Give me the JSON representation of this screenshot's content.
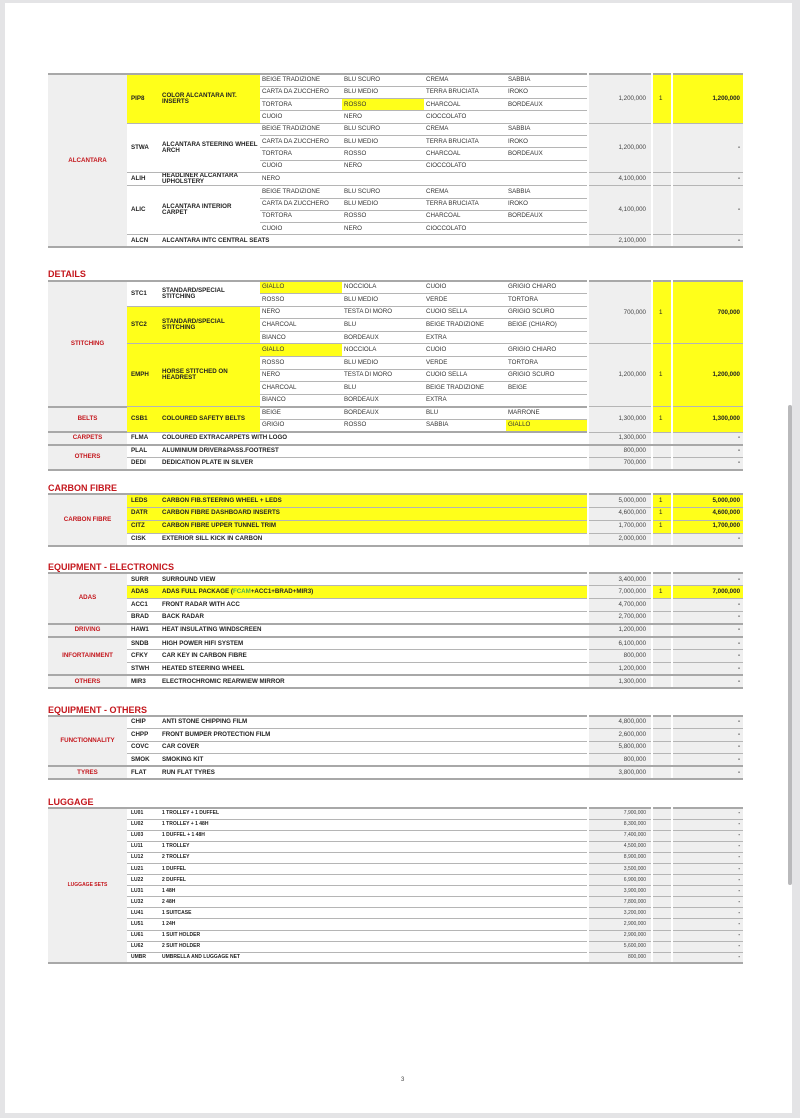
{
  "colors": {
    "accent_red": "#c4161c",
    "highlight_yellow": "#ffff1a",
    "package_green": "#4caf50"
  },
  "page_number": "3",
  "sections": [
    {
      "heading": "",
      "groups": [
        {
          "category": "ALCANTARA",
          "lines": [
            {
              "price": "1,200,000",
              "qty": "1",
              "total": "1,200,000",
              "highlight": true,
              "items": [
                {
                  "code": "PIP8",
                  "desc": "COLOR ALCANTARA INT. INSERTS",
                  "selected_color": "ROSSO",
                  "colors": [
                    [
                      "BEIGE TRADIZIONE",
                      "BLU SCURO",
                      "CREMA",
                      "SABBIA"
                    ],
                    [
                      "CARTA DA ZUCCHERO",
                      "BLU MEDIO",
                      "TERRA BRUCIATA",
                      "IROKO"
                    ],
                    [
                      "TORTORA",
                      "ROSSO",
                      "CHARCOAL",
                      "BORDEAUX"
                    ],
                    [
                      "CUOIO",
                      "NERO",
                      "CIOCCOLATO",
                      ""
                    ]
                  ]
                }
              ]
            },
            {
              "price": "1,200,000",
              "qty": "",
              "total": "-",
              "items": [
                {
                  "code": "STWA",
                  "desc": "ALCANTARA STEERING WHEEL ARCH",
                  "colors": [
                    [
                      "BEIGE TRADIZIONE",
                      "BLU SCURO",
                      "CREMA",
                      "SABBIA"
                    ],
                    [
                      "CARTA DA ZUCCHERO",
                      "BLU MEDIO",
                      "TERRA BRUCIATA",
                      "IROKO"
                    ],
                    [
                      "TORTORA",
                      "ROSSO",
                      "CHARCOAL",
                      "BORDEAUX"
                    ],
                    [
                      "CUOIO",
                      "NERO",
                      "CIOCCOLATO",
                      ""
                    ]
                  ]
                }
              ]
            },
            {
              "price": "4,100,000",
              "qty": "",
              "total": "-",
              "items": [
                {
                  "code": "ALIH",
                  "desc": "HEADLINER ALCANTARA UPHOLSTERY",
                  "colors": [
                    [
                      "NERO",
                      "",
                      "",
                      ""
                    ]
                  ]
                }
              ]
            },
            {
              "price": "4,100,000",
              "qty": "",
              "total": "-",
              "items": [
                {
                  "code": "ALIC",
                  "desc": "ALCANTARA INTERIOR CARPET",
                  "colors": [
                    [
                      "BEIGE TRADIZIONE",
                      "BLU SCURO",
                      "CREMA",
                      "SABBIA"
                    ],
                    [
                      "CARTA DA ZUCCHERO",
                      "BLU MEDIO",
                      "TERRA BRUCIATA",
                      "IROKO"
                    ],
                    [
                      "TORTORA",
                      "ROSSO",
                      "CHARCOAL",
                      "BORDEAUX"
                    ],
                    [
                      "CUOIO",
                      "NERO",
                      "CIOCCOLATO",
                      ""
                    ]
                  ]
                }
              ]
            },
            {
              "price": "2,100,000",
              "qty": "",
              "total": "-",
              "items": [
                {
                  "code": "ALCN",
                  "desc": "ALCANTARA INTC CENTRAL SEATS"
                }
              ]
            }
          ]
        }
      ]
    },
    {
      "heading": "DETAILS",
      "groups": [
        {
          "category": "STITCHING",
          "lines": [
            {
              "price": "700,000",
              "qty": "1",
              "total": "700,000",
              "highlight": true,
              "items": [
                {
                  "code": "STC1",
                  "desc": "STANDARD/SPECIAL STITCHING",
                  "item_highlight": false,
                  "selected_color": "GIALLO",
                  "colors": [
                    [
                      "GIALLO",
                      "NOCCIOLA",
                      "CUOIO",
                      "GRIGIO CHIARO"
                    ],
                    [
                      "ROSSO",
                      "BLU MEDIO",
                      "VERDE",
                      "TORTORA"
                    ]
                  ]
                },
                {
                  "code": "STC2",
                  "desc": "STANDARD/SPECIAL STITCHING",
                  "item_highlight": true,
                  "colors": [
                    [
                      "NERO",
                      "TESTA DI MORO",
                      "CUOIO SELLA",
                      "GRIGIO SCURO"
                    ],
                    [
                      "CHARCOAL",
                      "BLU",
                      "BEIGE TRADIZIONE",
                      "BEIGE (CHIARO)"
                    ],
                    [
                      "BIANCO",
                      "BORDEAUX",
                      "EXTRA",
                      ""
                    ]
                  ]
                }
              ]
            },
            {
              "price": "1,200,000",
              "qty": "1",
              "total": "1,200,000",
              "highlight": true,
              "items": [
                {
                  "code": "EMPH",
                  "desc": "HORSE STITCHED ON HEADREST",
                  "selected_color": "GIALLO",
                  "colors": [
                    [
                      "GIALLO",
                      "NOCCIOLA",
                      "CUOIO",
                      "GRIGIO CHIARO"
                    ],
                    [
                      "ROSSO",
                      "BLU MEDIO",
                      "VERDE",
                      "TORTORA"
                    ],
                    [
                      "NERO",
                      "TESTA DI MORO",
                      "CUOIO SELLA",
                      "GRIGIO SCURO"
                    ],
                    [
                      "CHARCOAL",
                      "BLU",
                      "BEIGE TRADIZIONE",
                      "BEIGE"
                    ],
                    [
                      "BIANCO",
                      "BORDEAUX",
                      "EXTRA",
                      ""
                    ]
                  ]
                }
              ]
            }
          ]
        },
        {
          "category": "BELTS",
          "lines": [
            {
              "price": "1,300,000",
              "qty": "1",
              "total": "1,300,000",
              "highlight": true,
              "items": [
                {
                  "code": "CSB1",
                  "desc": "COLOURED SAFETY BELTS",
                  "selected_color": "GIALLO",
                  "colors": [
                    [
                      "BEIGE",
                      "BORDEAUX",
                      "BLU",
                      "MARRONE"
                    ],
                    [
                      "GRIGIO",
                      "ROSSO",
                      "SABBIA",
                      "GIALLO"
                    ]
                  ]
                }
              ]
            }
          ]
        },
        {
          "category": "CARPETS",
          "lines": [
            {
              "price": "1,300,000",
              "qty": "",
              "total": "-",
              "items": [
                {
                  "code": "FLMA",
                  "desc": "COLOURED EXTRACARPETS WITH LOGO"
                }
              ]
            }
          ]
        },
        {
          "category": "OTHERS",
          "lines": [
            {
              "price": "800,000",
              "qty": "",
              "total": "-",
              "items": [
                {
                  "code": "PLAL",
                  "desc": "ALUMINIUM DRIVER&PASS.FOOTREST"
                }
              ]
            },
            {
              "price": "700,000",
              "qty": "",
              "total": "-",
              "items": [
                {
                  "code": "DEDI",
                  "desc": "DEDICATION PLATE IN SILVER"
                }
              ]
            }
          ]
        }
      ]
    },
    {
      "heading": "CARBON FIBRE",
      "groups": [
        {
          "category": "CARBON FIBRE",
          "lines": [
            {
              "price": "5,000,000",
              "qty": "1",
              "total": "5,000,000",
              "highlight": true,
              "items": [
                {
                  "code": "LEDS",
                  "desc": "CARBON FIB.STEERING WHEEL + LEDS"
                }
              ]
            },
            {
              "price": "4,600,000",
              "qty": "1",
              "total": "4,600,000",
              "highlight": true,
              "items": [
                {
                  "code": "DATR",
                  "desc": "CARBON FIBRE DASHBOARD INSERTS"
                }
              ]
            },
            {
              "price": "1,700,000",
              "qty": "1",
              "total": "1,700,000",
              "highlight": true,
              "items": [
                {
                  "code": "CITZ",
                  "desc": "CARBON FIBRE UPPER TUNNEL TRIM"
                }
              ]
            },
            {
              "price": "2,000,000",
              "qty": "",
              "total": "-",
              "items": [
                {
                  "code": "CISK",
                  "desc": "EXTERIOR SILL KICK IN CARBON"
                }
              ]
            }
          ]
        }
      ]
    },
    {
      "heading": "EQUIPMENT - ELECTRONICS",
      "groups": [
        {
          "category": "ADAS",
          "lines": [
            {
              "price": "3,400,000",
              "qty": "",
              "total": "-",
              "items": [
                {
                  "code": "SURR",
                  "desc": "SURROUND VIEW"
                }
              ]
            },
            {
              "price": "7,000,000",
              "qty": "1",
              "total": "7,000,000",
              "highlight": true,
              "items": [
                {
                  "code": "ADAS",
                  "desc": "ADAS FULL PACKAGE (FCAM+ACC1+BRAD+MIR3)",
                  "green_part": "FCAM"
                }
              ]
            },
            {
              "price": "4,700,000",
              "qty": "",
              "total": "-",
              "items": [
                {
                  "code": "ACC1",
                  "desc": "FRONT RADAR WITH ACC"
                }
              ]
            },
            {
              "price": "2,700,000",
              "qty": "",
              "total": "-",
              "items": [
                {
                  "code": "BRAD",
                  "desc": "BACK RADAR"
                }
              ]
            }
          ]
        },
        {
          "category": "DRIVING",
          "lines": [
            {
              "price": "1,200,000",
              "qty": "",
              "total": "-",
              "items": [
                {
                  "code": "HAW1",
                  "desc": "HEAT INSULATING WINDSCREEN"
                }
              ]
            }
          ]
        },
        {
          "category": "INFORTAINMENT",
          "lines": [
            {
              "price": "6,100,000",
              "qty": "",
              "total": "-",
              "items": [
                {
                  "code": "SNDB",
                  "desc": "HIGH POWER HIFI SYSTEM"
                }
              ]
            },
            {
              "price": "800,000",
              "qty": "",
              "total": "-",
              "items": [
                {
                  "code": "CFKY",
                  "desc": "CAR KEY IN CARBON FIBRE"
                }
              ]
            },
            {
              "price": "1,200,000",
              "qty": "",
              "total": "-",
              "items": [
                {
                  "code": "STWH",
                  "desc": "HEATED STEERING WHEEL"
                }
              ]
            }
          ]
        },
        {
          "category": "OTHERS",
          "lines": [
            {
              "price": "1,300,000",
              "qty": "",
              "total": "-",
              "items": [
                {
                  "code": "MIR3",
                  "desc": "ELECTROCHROMIC REARWIEW MIRROR"
                }
              ]
            }
          ]
        }
      ]
    },
    {
      "heading": "EQUIPMENT - OTHERS",
      "groups": [
        {
          "category": "FUNCTIONNALITY",
          "lines": [
            {
              "price": "4,800,000",
              "qty": "",
              "total": "-",
              "items": [
                {
                  "code": "CHIP",
                  "desc": "ANTI STONE CHIPPING FILM"
                }
              ]
            },
            {
              "price": "2,600,000",
              "qty": "",
              "total": "-",
              "items": [
                {
                  "code": "CHPP",
                  "desc": "FRONT BUMPER PROTECTION FILM"
                }
              ]
            },
            {
              "price": "5,800,000",
              "qty": "",
              "total": "-",
              "items": [
                {
                  "code": "COVC",
                  "desc": "CAR COVER"
                }
              ]
            },
            {
              "price": "800,000",
              "qty": "",
              "total": "-",
              "items": [
                {
                  "code": "SMOK",
                  "desc": "SMOKING KIT"
                }
              ]
            }
          ]
        },
        {
          "category": "TYRES",
          "lines": [
            {
              "price": "3,800,000",
              "qty": "",
              "total": "-",
              "items": [
                {
                  "code": "FLAT",
                  "desc": "RUN FLAT TYRES"
                }
              ]
            }
          ]
        }
      ]
    },
    {
      "heading": "LUGGAGE",
      "groups": [
        {
          "category": "LUGGAGE SETS",
          "lines": [
            {
              "price": "7,900,000",
              "qty": "",
              "total": "-",
              "items": [
                {
                  "code": "LU01",
                  "desc": "1 TROLLEY + 1 DUFFEL"
                }
              ]
            },
            {
              "price": "8,300,000",
              "qty": "",
              "total": "-",
              "items": [
                {
                  "code": "LU02",
                  "desc": "1 TROLLEY + 1 48H"
                }
              ]
            },
            {
              "price": "7,400,000",
              "qty": "",
              "total": "-",
              "items": [
                {
                  "code": "LU03",
                  "desc": "1 DUFFEL + 1 48H"
                }
              ]
            },
            {
              "price": "4,500,000",
              "qty": "",
              "total": "-",
              "items": [
                {
                  "code": "LU11",
                  "desc": "1 TROLLEY"
                }
              ]
            },
            {
              "price": "8,900,000",
              "qty": "",
              "total": "-",
              "items": [
                {
                  "code": "LU12",
                  "desc": "2 TROLLEY"
                }
              ]
            },
            {
              "price": "3,500,000",
              "qty": "",
              "total": "-",
              "items": [
                {
                  "code": "LU21",
                  "desc": "1 DUFFEL"
                }
              ]
            },
            {
              "price": "6,900,000",
              "qty": "",
              "total": "-",
              "items": [
                {
                  "code": "LU22",
                  "desc": "2 DUFFEL"
                }
              ]
            },
            {
              "price": "3,900,000",
              "qty": "",
              "total": "-",
              "items": [
                {
                  "code": "LU31",
                  "desc": "1 48H"
                }
              ]
            },
            {
              "price": "7,800,000",
              "qty": "",
              "total": "-",
              "items": [
                {
                  "code": "LU32",
                  "desc": "2 48H"
                }
              ]
            },
            {
              "price": "3,200,000",
              "qty": "",
              "total": "-",
              "items": [
                {
                  "code": "LU41",
                  "desc": "1 SUITCASE"
                }
              ]
            },
            {
              "price": "2,900,000",
              "qty": "",
              "total": "-",
              "items": [
                {
                  "code": "LU51",
                  "desc": "1 24H"
                }
              ]
            },
            {
              "price": "2,900,000",
              "qty": "",
              "total": "-",
              "items": [
                {
                  "code": "LU61",
                  "desc": "1 SUIT HOLDER"
                }
              ]
            },
            {
              "price": "5,600,000",
              "qty": "",
              "total": "-",
              "items": [
                {
                  "code": "LU62",
                  "desc": "2 SUIT HOLDER"
                }
              ]
            },
            {
              "price": "800,000",
              "qty": "",
              "total": "-",
              "items": [
                {
                  "code": "UMBR",
                  "desc": "UMBRELLA AND LUGGAGE NET"
                }
              ]
            }
          ]
        }
      ]
    }
  ]
}
